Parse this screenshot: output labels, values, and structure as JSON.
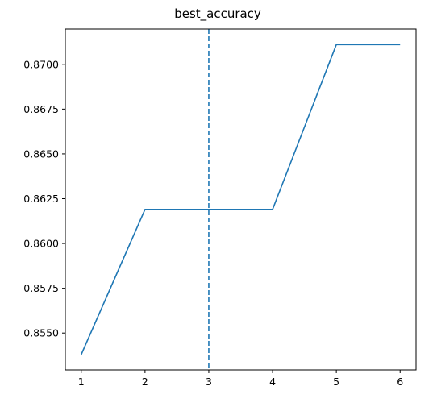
{
  "chart_data": {
    "type": "line",
    "title": "best_accuracy",
    "xlabel": "",
    "ylabel": "",
    "x": [
      1,
      2,
      3,
      4,
      5,
      6
    ],
    "series": [
      {
        "values": [
          0.8538,
          0.8619,
          0.8619,
          0.8619,
          0.8711,
          0.8711
        ],
        "color": "#1f77b4"
      }
    ],
    "vline": {
      "x": 3,
      "style": "dashed",
      "color": "#1f77b4"
    },
    "xticks": [
      1,
      2,
      3,
      4,
      5,
      6
    ],
    "yticks": [
      0.855,
      0.8575,
      0.86,
      0.8625,
      0.865,
      0.8675,
      0.87
    ],
    "ytick_labels": [
      "0.8550",
      "0.8575",
      "0.8600",
      "0.8625",
      "0.8650",
      "0.8675",
      "0.8700"
    ],
    "xlim": [
      0.75,
      6.25
    ],
    "ylim": [
      0.85294,
      0.87197
    ],
    "grid": false,
    "legend": "none"
  }
}
